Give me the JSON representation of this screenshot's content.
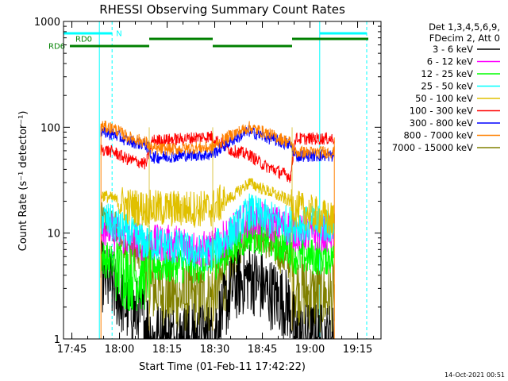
{
  "chart_data": {
    "type": "line",
    "title": "RHESSI Observing Summary Count Rates",
    "xlabel": "Start Time (01-Feb-11 17:42:22)",
    "ylabel": "Count Rate (s⁻¹ detector⁻¹)",
    "y_scale": "log",
    "ylim": [
      1,
      1000
    ],
    "xlim_minutes_after_start": [
      0,
      100
    ],
    "x_ticks": [
      "17:45",
      "18:00",
      "18:15",
      "18:30",
      "18:45",
      "19:00",
      "19:15"
    ],
    "x_tick_minutes": [
      2.633,
      17.633,
      32.633,
      47.633,
      62.633,
      77.633,
      92.633
    ],
    "y_ticks": [
      {
        "value": 1,
        "label": "1"
      },
      {
        "value": 10,
        "label": "10"
      },
      {
        "value": 100,
        "label": "100"
      },
      {
        "value": 1000,
        "label": "1000"
      }
    ],
    "legend_header": [
      "Det 1,3,4,5,6,9,",
      "FDecim 2, Att 0"
    ],
    "legend_placement": "right",
    "data_window_minutes": [
      11.8,
      85.3
    ],
    "attenuator_steps_minutes": [
      27,
      47,
      72
    ],
    "footer": "14-Oct-2021 00:51",
    "vertical_markers": [
      {
        "minutes": 11.3,
        "style": "solid",
        "color": "#00ffff"
      },
      {
        "minutes": 15.3,
        "style": "dashed",
        "color": "#00ffff"
      },
      {
        "minutes": 80.7,
        "style": "solid",
        "color": "#00ffff"
      },
      {
        "minutes": 95.5,
        "style": "dashed",
        "color": "#00ffff"
      }
    ],
    "flag_bars": [
      {
        "label": "N",
        "color": "#00ffff",
        "segments": [
          [
            0,
            15.3
          ],
          [
            80.7,
            95.5
          ]
        ]
      },
      {
        "label": "RD0",
        "color": "#008000",
        "segments": [
          [
            27,
            47
          ],
          [
            72,
            96
          ]
        ]
      },
      {
        "label": "RD6",
        "color": "#008000",
        "segments": [
          [
            2,
            27
          ],
          [
            47,
            72
          ]
        ]
      }
    ],
    "series": [
      {
        "name": "3 - 6 keV",
        "color": "#000000",
        "values": [
          4,
          3,
          2,
          1.5,
          1,
          1,
          1,
          1,
          1,
          3,
          4,
          3,
          2,
          1,
          1,
          1
        ]
      },
      {
        "name": "6 - 12 keV",
        "color": "#ff00ff",
        "values": [
          12,
          10,
          9,
          8,
          8,
          8,
          8,
          7,
          7,
          10,
          14,
          13,
          11,
          10,
          10,
          10
        ]
      },
      {
        "name": "12 - 25 keV",
        "color": "#00ff00",
        "values": [
          6,
          5,
          4,
          4,
          5,
          5,
          5,
          5,
          5,
          7,
          10,
          9,
          7,
          6,
          6,
          6
        ]
      },
      {
        "name": "25 - 50 keV",
        "color": "#00ffff",
        "values": [
          14,
          12,
          10,
          8,
          8,
          7.5,
          7,
          6.5,
          6.5,
          10,
          16,
          14,
          12,
          12,
          12,
          12
        ]
      },
      {
        "name": "50 - 100 keV",
        "color": "#e0c000",
        "values": [
          23,
          21,
          18,
          17,
          17,
          17,
          17,
          17,
          17,
          22,
          30,
          26,
          20,
          17,
          15,
          13
        ]
      },
      {
        "name": "100 - 300 keV",
        "color": "#ff0000",
        "values": [
          62,
          58,
          50,
          45,
          75,
          76,
          78,
          80,
          82,
          60,
          55,
          44,
          34,
          78,
          78,
          78
        ]
      },
      {
        "name": "300 - 800 keV",
        "color": "#0000ff",
        "values": [
          90,
          85,
          75,
          68,
          52,
          53,
          54,
          55,
          55,
          75,
          92,
          82,
          68,
          54,
          54,
          54
        ]
      },
      {
        "name": "800 - 7000 keV",
        "color": "#ff8000",
        "values": [
          102,
          97,
          82,
          72,
          62,
          62,
          63,
          64,
          64,
          85,
          100,
          90,
          72,
          58,
          58,
          58
        ]
      },
      {
        "name": "7000 - 15000 keV",
        "color": "#808000",
        "values": [
          13,
          11,
          8,
          5,
          3,
          2.5,
          2.5,
          2.5,
          2.5,
          5,
          12,
          9,
          5,
          3,
          2.5,
          2.5
        ]
      }
    ],
    "series_x_minutes": [
      12,
      16,
      20,
      26,
      28,
      33,
      38,
      42,
      46.5,
      53,
      58.5,
      63,
      71.5,
      73,
      79,
      85
    ]
  }
}
